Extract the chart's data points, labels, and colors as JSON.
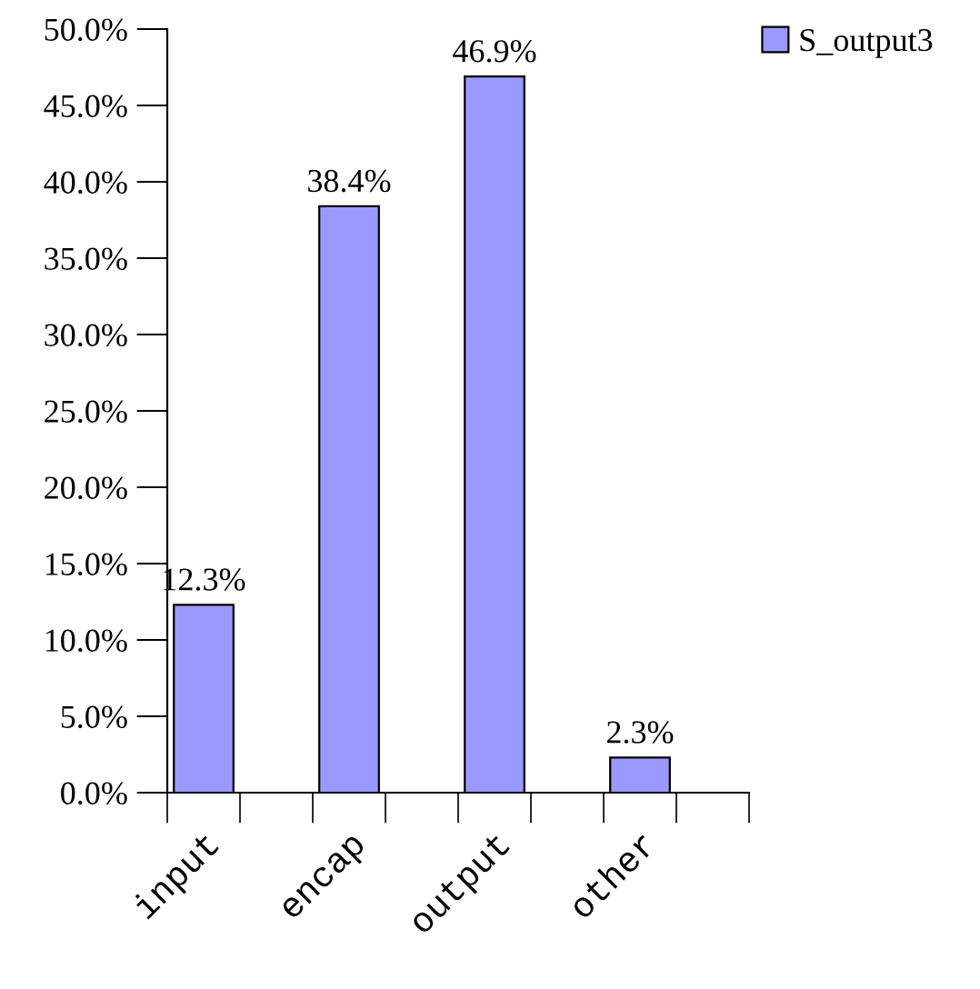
{
  "chart_data": {
    "type": "bar",
    "categories": [
      "input",
      "encap",
      "output",
      "other"
    ],
    "series": [
      {
        "name": "S_output3",
        "color": "#9999ff",
        "values": [
          12.3,
          38.4,
          46.9,
          2.3
        ],
        "value_labels": [
          "12.3%",
          "38.4%",
          "46.9%",
          "2.3%"
        ]
      }
    ],
    "ylim": [
      0,
      50
    ],
    "yticks": [
      {
        "value": 0,
        "label": "0.0%"
      },
      {
        "value": 5,
        "label": "5.0%"
      },
      {
        "value": 10,
        "label": "10.0%"
      },
      {
        "value": 15,
        "label": "15.0%"
      },
      {
        "value": 20,
        "label": "20.0%"
      },
      {
        "value": 25,
        "label": "25.0%"
      },
      {
        "value": 30,
        "label": "30.0%"
      },
      {
        "value": 35,
        "label": "35.0%"
      },
      {
        "value": 40,
        "label": "40.0%"
      },
      {
        "value": 45,
        "label": "45.0%"
      },
      {
        "value": 50,
        "label": "50.0%"
      }
    ],
    "grid": false,
    "legend": "top right"
  }
}
